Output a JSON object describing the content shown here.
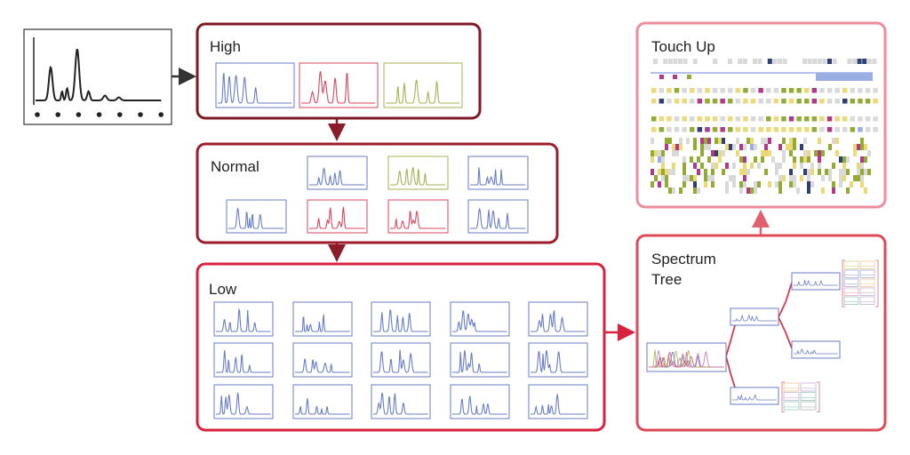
{
  "stages": {
    "high": {
      "label": "High"
    },
    "normal": {
      "label": "Normal"
    },
    "low": {
      "label": "Low"
    },
    "tree": {
      "label_line1": "Spectrum",
      "label_line2": "Tree"
    },
    "touchup": {
      "label": "Touch Up"
    }
  },
  "colors": {
    "high_border": "#7d1a24",
    "normal_border": "#9e1c2c",
    "low_border": "#d8223e",
    "tree_border": "#dc4a55",
    "touchup_border": "#ee8d9b",
    "spectrum_blue": "#6a7ec6",
    "spectrum_red": "#d9475c",
    "spectrum_olive": "#a9b152",
    "grid_gray": "#d9d9d9",
    "grid_yellow": "#ecd97a",
    "grid_green": "#93aa35",
    "grid_magenta": "#b03a86",
    "grid_navy": "#2f4174",
    "grid_lightblue": "#9aaee3"
  }
}
